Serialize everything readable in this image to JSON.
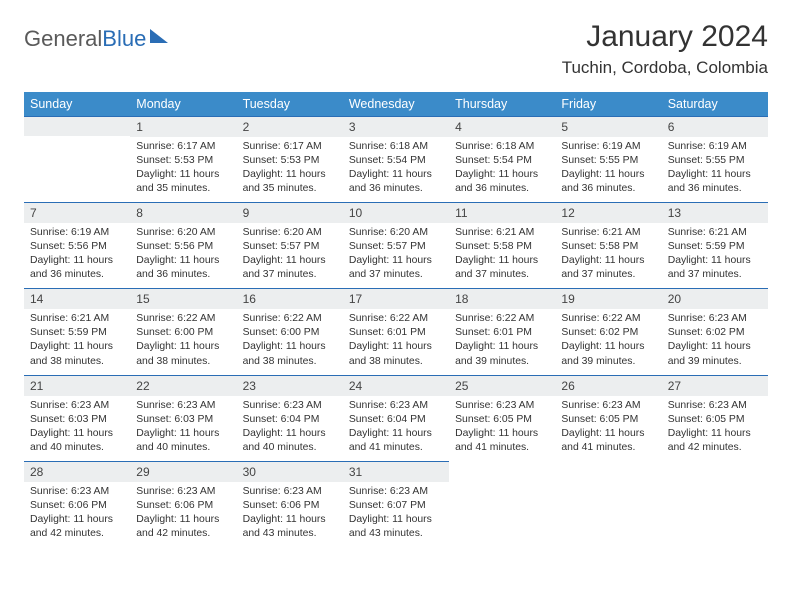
{
  "branding": {
    "word1": "General",
    "word2": "Blue"
  },
  "header": {
    "title": "January 2024",
    "location": "Tuchin, Cordoba, Colombia"
  },
  "colors": {
    "header_bg": "#3b8bc9",
    "header_text": "#ffffff",
    "daynum_bg": "#eceeef",
    "rule": "#2a6db5",
    "body_text": "#333333"
  },
  "weekdays": [
    "Sunday",
    "Monday",
    "Tuesday",
    "Wednesday",
    "Thursday",
    "Friday",
    "Saturday"
  ],
  "calendar": {
    "start_weekday": 1,
    "days": [
      {
        "n": 1,
        "sunrise": "6:17 AM",
        "sunset": "5:53 PM",
        "daylight": "11 hours and 35 minutes."
      },
      {
        "n": 2,
        "sunrise": "6:17 AM",
        "sunset": "5:53 PM",
        "daylight": "11 hours and 35 minutes."
      },
      {
        "n": 3,
        "sunrise": "6:18 AM",
        "sunset": "5:54 PM",
        "daylight": "11 hours and 36 minutes."
      },
      {
        "n": 4,
        "sunrise": "6:18 AM",
        "sunset": "5:54 PM",
        "daylight": "11 hours and 36 minutes."
      },
      {
        "n": 5,
        "sunrise": "6:19 AM",
        "sunset": "5:55 PM",
        "daylight": "11 hours and 36 minutes."
      },
      {
        "n": 6,
        "sunrise": "6:19 AM",
        "sunset": "5:55 PM",
        "daylight": "11 hours and 36 minutes."
      },
      {
        "n": 7,
        "sunrise": "6:19 AM",
        "sunset": "5:56 PM",
        "daylight": "11 hours and 36 minutes."
      },
      {
        "n": 8,
        "sunrise": "6:20 AM",
        "sunset": "5:56 PM",
        "daylight": "11 hours and 36 minutes."
      },
      {
        "n": 9,
        "sunrise": "6:20 AM",
        "sunset": "5:57 PM",
        "daylight": "11 hours and 37 minutes."
      },
      {
        "n": 10,
        "sunrise": "6:20 AM",
        "sunset": "5:57 PM",
        "daylight": "11 hours and 37 minutes."
      },
      {
        "n": 11,
        "sunrise": "6:21 AM",
        "sunset": "5:58 PM",
        "daylight": "11 hours and 37 minutes."
      },
      {
        "n": 12,
        "sunrise": "6:21 AM",
        "sunset": "5:58 PM",
        "daylight": "11 hours and 37 minutes."
      },
      {
        "n": 13,
        "sunrise": "6:21 AM",
        "sunset": "5:59 PM",
        "daylight": "11 hours and 37 minutes."
      },
      {
        "n": 14,
        "sunrise": "6:21 AM",
        "sunset": "5:59 PM",
        "daylight": "11 hours and 38 minutes."
      },
      {
        "n": 15,
        "sunrise": "6:22 AM",
        "sunset": "6:00 PM",
        "daylight": "11 hours and 38 minutes."
      },
      {
        "n": 16,
        "sunrise": "6:22 AM",
        "sunset": "6:00 PM",
        "daylight": "11 hours and 38 minutes."
      },
      {
        "n": 17,
        "sunrise": "6:22 AM",
        "sunset": "6:01 PM",
        "daylight": "11 hours and 38 minutes."
      },
      {
        "n": 18,
        "sunrise": "6:22 AM",
        "sunset": "6:01 PM",
        "daylight": "11 hours and 39 minutes."
      },
      {
        "n": 19,
        "sunrise": "6:22 AM",
        "sunset": "6:02 PM",
        "daylight": "11 hours and 39 minutes."
      },
      {
        "n": 20,
        "sunrise": "6:23 AM",
        "sunset": "6:02 PM",
        "daylight": "11 hours and 39 minutes."
      },
      {
        "n": 21,
        "sunrise": "6:23 AM",
        "sunset": "6:03 PM",
        "daylight": "11 hours and 40 minutes."
      },
      {
        "n": 22,
        "sunrise": "6:23 AM",
        "sunset": "6:03 PM",
        "daylight": "11 hours and 40 minutes."
      },
      {
        "n": 23,
        "sunrise": "6:23 AM",
        "sunset": "6:04 PM",
        "daylight": "11 hours and 40 minutes."
      },
      {
        "n": 24,
        "sunrise": "6:23 AM",
        "sunset": "6:04 PM",
        "daylight": "11 hours and 41 minutes."
      },
      {
        "n": 25,
        "sunrise": "6:23 AM",
        "sunset": "6:05 PM",
        "daylight": "11 hours and 41 minutes."
      },
      {
        "n": 26,
        "sunrise": "6:23 AM",
        "sunset": "6:05 PM",
        "daylight": "11 hours and 41 minutes."
      },
      {
        "n": 27,
        "sunrise": "6:23 AM",
        "sunset": "6:05 PM",
        "daylight": "11 hours and 42 minutes."
      },
      {
        "n": 28,
        "sunrise": "6:23 AM",
        "sunset": "6:06 PM",
        "daylight": "11 hours and 42 minutes."
      },
      {
        "n": 29,
        "sunrise": "6:23 AM",
        "sunset": "6:06 PM",
        "daylight": "11 hours and 42 minutes."
      },
      {
        "n": 30,
        "sunrise": "6:23 AM",
        "sunset": "6:06 PM",
        "daylight": "11 hours and 43 minutes."
      },
      {
        "n": 31,
        "sunrise": "6:23 AM",
        "sunset": "6:07 PM",
        "daylight": "11 hours and 43 minutes."
      }
    ],
    "labels": {
      "sunrise": "Sunrise:",
      "sunset": "Sunset:",
      "daylight": "Daylight:"
    }
  }
}
